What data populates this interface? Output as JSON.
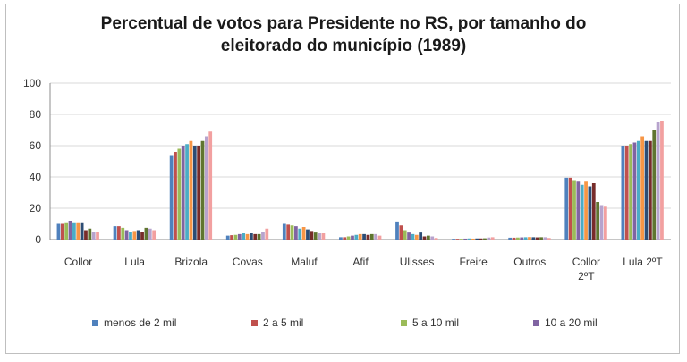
{
  "title_line1": "Percentual de votos para Presidente no RS, por tamanho do",
  "title_line2": "eleitorado do município (1989)",
  "chart_data": {
    "type": "bar",
    "title": "Percentual de votos para Presidente no RS, por tamanho do eleitorado do município (1989)",
    "ylim": [
      0,
      100
    ],
    "yticks": [
      0,
      20,
      40,
      60,
      80,
      100
    ],
    "grid": true,
    "legend_position": "bottom",
    "categories": [
      "Collor",
      "Lula",
      "Brizola",
      "Covas",
      "Maluf",
      "Afif",
      "Ulisses",
      "Freire",
      "Outros",
      "Collor 2ºT",
      "Lula 2ºT"
    ],
    "category_lines": [
      [
        "Collor"
      ],
      [
        "Lula"
      ],
      [
        "Brizola"
      ],
      [
        "Covas"
      ],
      [
        "Maluf"
      ],
      [
        "Afif"
      ],
      [
        "Ulisses"
      ],
      [
        "Freire"
      ],
      [
        "Outros"
      ],
      [
        "Collor",
        "2ºT"
      ],
      [
        "Lula 2ºT"
      ]
    ],
    "series": [
      {
        "name": "menos de 2 mil",
        "color": "#4f81bd",
        "values": [
          10,
          8.5,
          54,
          2.5,
          10,
          1.5,
          11.5,
          0.5,
          1.2,
          39.5,
          60
        ]
      },
      {
        "name": "2 a 5 mil",
        "color": "#c0504d",
        "values": [
          10,
          8.5,
          56,
          2.8,
          9.5,
          1.5,
          9,
          0.5,
          1.2,
          39.5,
          60
        ]
      },
      {
        "name": "5 a 10 mil",
        "color": "#9bbb59",
        "values": [
          11,
          7.5,
          58,
          3,
          9,
          2,
          6,
          0.5,
          1.3,
          38,
          61
        ]
      },
      {
        "name": "10 a 20 mil",
        "color": "#8064a2",
        "values": [
          12,
          6,
          60,
          3.5,
          8.5,
          2.5,
          4.5,
          0.6,
          1.4,
          37,
          62
        ]
      },
      {
        "name": "",
        "color": "#4bacc6",
        "values": [
          11,
          5,
          61,
          4,
          7,
          3,
          3.5,
          0.7,
          1.5,
          35,
          63
        ]
      },
      {
        "name": "",
        "color": "#f79646",
        "values": [
          11,
          5.5,
          63,
          3.5,
          8,
          3.5,
          3,
          0.6,
          1.6,
          37,
          66
        ]
      },
      {
        "name": "",
        "color": "#2c4d75",
        "values": [
          11,
          6,
          60,
          4,
          6.5,
          3.5,
          4.5,
          0.7,
          1.5,
          34,
          63
        ]
      },
      {
        "name": "",
        "color": "#772c2a",
        "values": [
          6,
          5,
          60,
          3.5,
          5.5,
          3,
          2,
          0.7,
          1.4,
          36,
          63
        ]
      },
      {
        "name": "",
        "color": "#5f7530",
        "values": [
          7,
          7.5,
          63,
          3.5,
          4.5,
          3.5,
          2.5,
          0.8,
          1.5,
          24,
          70
        ]
      },
      {
        "name": "",
        "color": "#b7a3cd",
        "values": [
          5,
          7,
          66,
          5,
          4,
          3.5,
          2,
          1.3,
          1.5,
          22,
          75
        ]
      },
      {
        "name": "",
        "color": "#f2a0a0",
        "values": [
          5,
          6,
          69,
          7,
          4,
          2.5,
          1,
          1.5,
          1,
          21,
          76
        ]
      }
    ]
  }
}
